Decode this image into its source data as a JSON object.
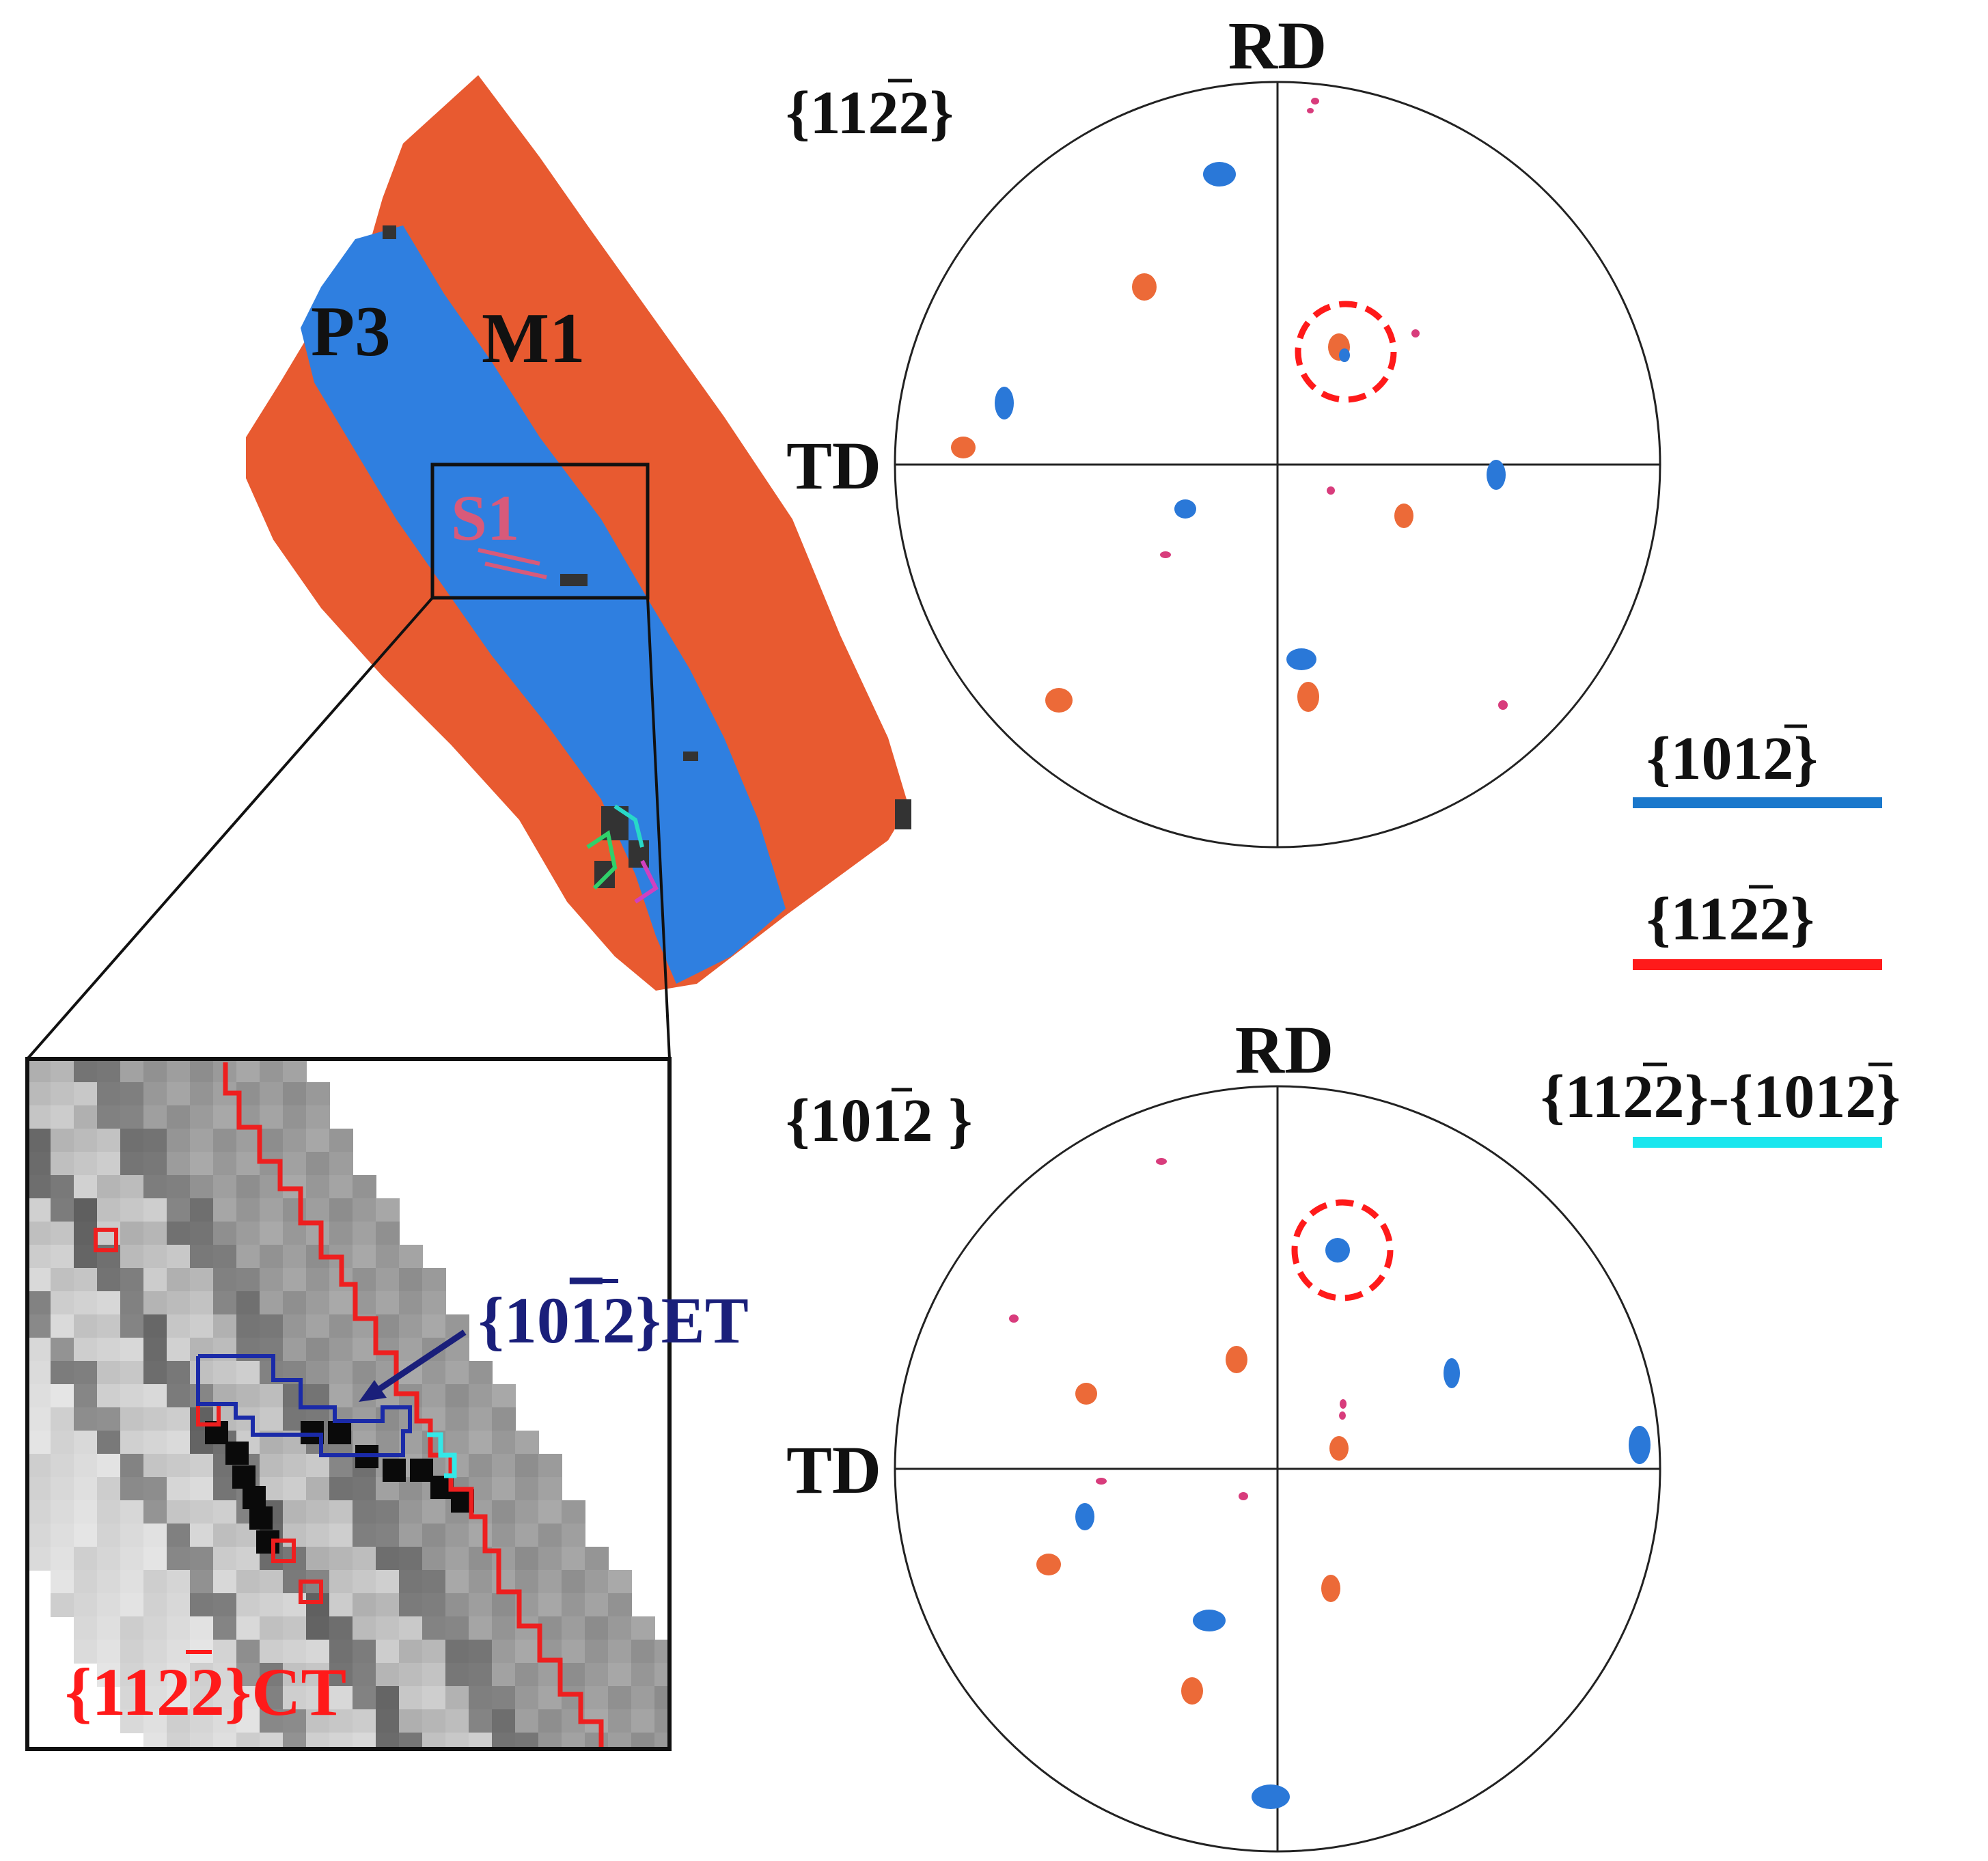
{
  "ebsd_map": {
    "labels": {
      "parent": "P3",
      "matrix": "M1",
      "site": "S1"
    },
    "colors": {
      "matrix": "#e85a30",
      "parent": "#2f7fe0",
      "site_label": "#d85a7a",
      "dark_speck": "#333333"
    }
  },
  "inset": {
    "annotation_et": {
      "prefix": "{10",
      "bar": "1",
      "suffix": "2}ET",
      "color": "#1a1f7a"
    },
    "annotation_ct": {
      "prefix": "{11",
      "bar": "2",
      "suffix": "2}CT",
      "color": "#ff1a1a"
    },
    "boundary_colors": {
      "et": "#1a2aa8",
      "ct": "#ee1f1f",
      "ct_et": "#33e8e8"
    }
  },
  "pole_figures": [
    {
      "plane": {
        "prefix": "{11",
        "bar": "2",
        "suffix": "2}"
      },
      "axis_top": "RD",
      "axis_left": "TD",
      "highlight": "dashed red circle around the pole near upper-right quadrant"
    },
    {
      "plane": {
        "prefix": "{10",
        "bar": "1",
        "suffix": "2 }"
      },
      "axis_top": "RD",
      "axis_left": "TD",
      "highlight": "dashed red circle around the pole near upper-right quadrant"
    }
  ],
  "legend": [
    {
      "prefix": "{10",
      "bar": "1",
      "suffix": "2}",
      "color": "#1a78cc"
    },
    {
      "prefix": "{11",
      "bar": "2",
      "suffix": "2}",
      "color": "#ff1a1a"
    },
    {
      "prefix": "{11",
      "bar": "2",
      "suffix": "2}-{10",
      "bar2": "1",
      "suffix2": "2}",
      "color": "#19e6ee"
    }
  ],
  "pole_colors": {
    "blue": "#2a78d8",
    "orange": "#ec6a38",
    "pink": "#d83c7c",
    "dash": "#ff1a1a"
  }
}
